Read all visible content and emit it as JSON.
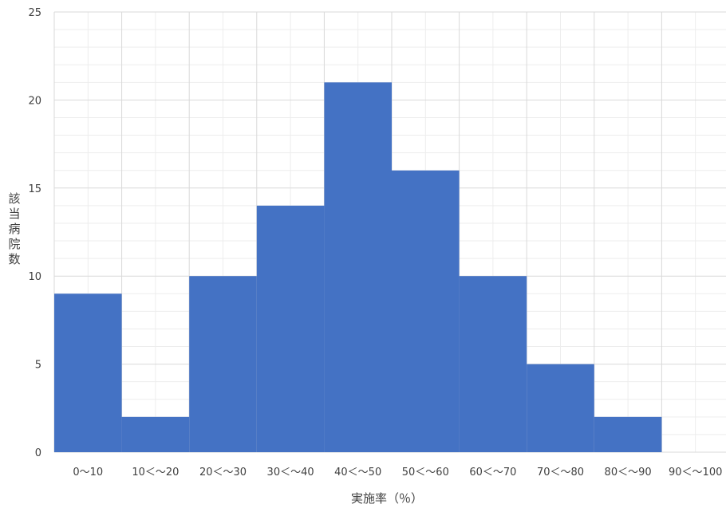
{
  "chart_data": {
    "type": "bar",
    "categories": [
      "0～10",
      "10＜～20",
      "20＜～30",
      "30＜～40",
      "40＜～50",
      "50＜～60",
      "60＜～70",
      "70＜～80",
      "80＜～90",
      "90＜～100"
    ],
    "values": [
      9,
      2,
      10,
      14,
      21,
      16,
      10,
      5,
      2,
      0
    ],
    "xlabel": "実施率（％）",
    "ylabel": "該当病院数",
    "ylim": [
      0,
      25
    ],
    "yticks": [
      0,
      5,
      10,
      15,
      20,
      25
    ],
    "grid": true,
    "legend": "none",
    "colors": {
      "bar": "#4472C4",
      "grid_major": "#D9D9D9",
      "grid_minor": "#EDEDED",
      "text": "#404040"
    }
  }
}
